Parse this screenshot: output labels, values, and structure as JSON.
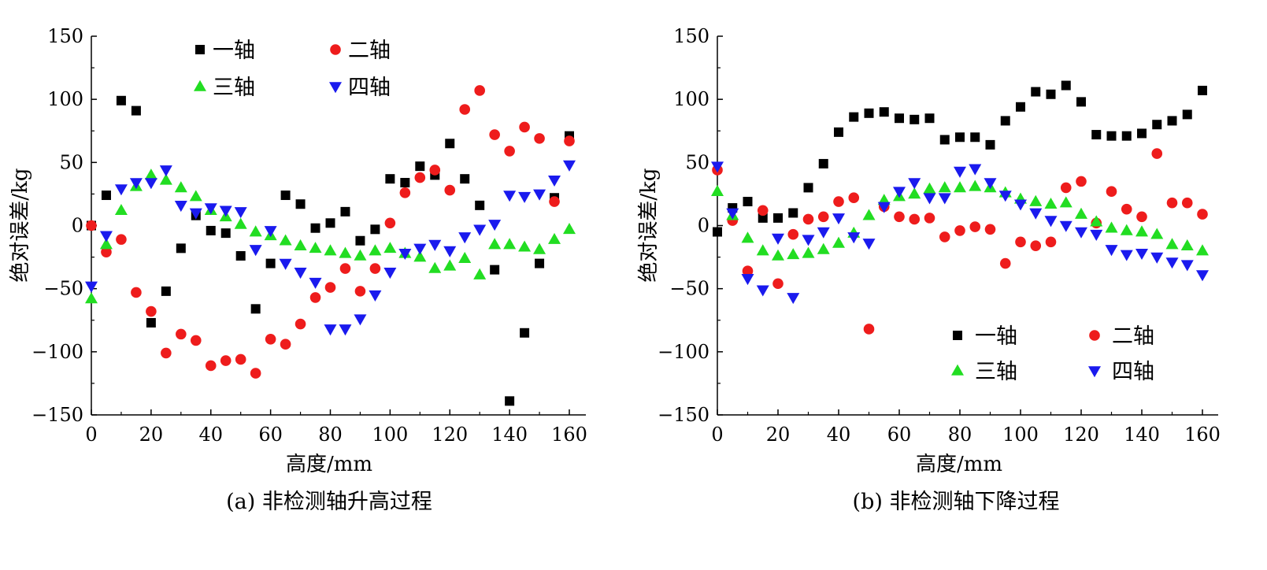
{
  "chart_data": [
    {
      "id": "a",
      "type": "scatter",
      "caption": "(a) 非检测轴升高过程",
      "xlabel": "高度/mm",
      "ylabel": "绝对误差/kg",
      "xlim": [
        0,
        165
      ],
      "ylim": [
        -150,
        150
      ],
      "xticks": [
        0,
        20,
        40,
        60,
        80,
        100,
        120,
        140,
        160
      ],
      "yticks": [
        -150,
        -100,
        -50,
        0,
        50,
        100,
        150
      ],
      "ytick_labels": [
        "−150",
        "−100",
        "−50",
        "0",
        "50",
        "100",
        "150"
      ],
      "legend_position": "top",
      "series": [
        {
          "name": "一轴",
          "marker": "square",
          "color": "#000000",
          "points": [
            [
              0,
              0
            ],
            [
              5,
              24
            ],
            [
              10,
              99
            ],
            [
              15,
              91
            ],
            [
              20,
              -77
            ],
            [
              25,
              -52
            ],
            [
              30,
              -18
            ],
            [
              35,
              8
            ],
            [
              40,
              -4
            ],
            [
              45,
              -6
            ],
            [
              50,
              -24
            ],
            [
              55,
              -66
            ],
            [
              60,
              -30
            ],
            [
              65,
              24
            ],
            [
              70,
              17
            ],
            [
              75,
              -2
            ],
            [
              80,
              2
            ],
            [
              85,
              11
            ],
            [
              90,
              -12
            ],
            [
              95,
              -3
            ],
            [
              100,
              37
            ],
            [
              105,
              34
            ],
            [
              110,
              47
            ],
            [
              115,
              40
            ],
            [
              120,
              65
            ],
            [
              125,
              37
            ],
            [
              130,
              16
            ],
            [
              135,
              -35
            ],
            [
              140,
              -139
            ],
            [
              145,
              -85
            ],
            [
              150,
              -30
            ],
            [
              155,
              22
            ],
            [
              160,
              71
            ]
          ]
        },
        {
          "name": "二轴",
          "marker": "circle",
          "color": "#ee1c1c",
          "points": [
            [
              0,
              0
            ],
            [
              5,
              -21
            ],
            [
              10,
              -11
            ],
            [
              15,
              -53
            ],
            [
              20,
              -68
            ],
            [
              25,
              -101
            ],
            [
              30,
              -86
            ],
            [
              35,
              -91
            ],
            [
              40,
              -111
            ],
            [
              45,
              -107
            ],
            [
              50,
              -106
            ],
            [
              55,
              -117
            ],
            [
              60,
              -90
            ],
            [
              65,
              -94
            ],
            [
              70,
              -78
            ],
            [
              75,
              -57
            ],
            [
              80,
              -49
            ],
            [
              85,
              -34
            ],
            [
              90,
              -52
            ],
            [
              95,
              -34
            ],
            [
              100,
              2
            ],
            [
              105,
              26
            ],
            [
              110,
              38
            ],
            [
              115,
              44
            ],
            [
              120,
              28
            ],
            [
              125,
              92
            ],
            [
              130,
              107
            ],
            [
              135,
              72
            ],
            [
              140,
              59
            ],
            [
              145,
              78
            ],
            [
              150,
              69
            ],
            [
              155,
              19
            ],
            [
              160,
              67
            ]
          ]
        },
        {
          "name": "三轴",
          "marker": "triangle-up",
          "color": "#22dd22",
          "points": [
            [
              0,
              -58
            ],
            [
              5,
              -15
            ],
            [
              10,
              12
            ],
            [
              15,
              31
            ],
            [
              20,
              40
            ],
            [
              25,
              36
            ],
            [
              30,
              30
            ],
            [
              35,
              23
            ],
            [
              40,
              12
            ],
            [
              45,
              7
            ],
            [
              50,
              1
            ],
            [
              55,
              -5
            ],
            [
              60,
              -8
            ],
            [
              65,
              -12
            ],
            [
              70,
              -16
            ],
            [
              75,
              -18
            ],
            [
              80,
              -20
            ],
            [
              85,
              -22
            ],
            [
              90,
              -24
            ],
            [
              95,
              -20
            ],
            [
              100,
              -18
            ],
            [
              105,
              -22
            ],
            [
              110,
              -25
            ],
            [
              115,
              -34
            ],
            [
              120,
              -32
            ],
            [
              125,
              -26
            ],
            [
              130,
              -39
            ],
            [
              135,
              -15
            ],
            [
              140,
              -15
            ],
            [
              145,
              -17
            ],
            [
              150,
              -19
            ],
            [
              155,
              -11
            ],
            [
              160,
              -3
            ]
          ]
        },
        {
          "name": "四轴",
          "marker": "triangle-down",
          "color": "#1a1aee",
          "points": [
            [
              0,
              -48
            ],
            [
              5,
              -8
            ],
            [
              10,
              29
            ],
            [
              15,
              34
            ],
            [
              20,
              34
            ],
            [
              25,
              44
            ],
            [
              30,
              16
            ],
            [
              35,
              10
            ],
            [
              40,
              14
            ],
            [
              45,
              12
            ],
            [
              50,
              11
            ],
            [
              55,
              -19
            ],
            [
              60,
              -4
            ],
            [
              65,
              -30
            ],
            [
              70,
              -37
            ],
            [
              75,
              -45
            ],
            [
              80,
              -82
            ],
            [
              85,
              -82
            ],
            [
              90,
              -74
            ],
            [
              95,
              -55
            ],
            [
              100,
              -37
            ],
            [
              105,
              -22
            ],
            [
              110,
              -18
            ],
            [
              115,
              -15
            ],
            [
              120,
              -20
            ],
            [
              125,
              -9
            ],
            [
              130,
              -3
            ],
            [
              135,
              1
            ],
            [
              140,
              24
            ],
            [
              145,
              23
            ],
            [
              150,
              25
            ],
            [
              155,
              36
            ],
            [
              160,
              48
            ]
          ]
        }
      ]
    },
    {
      "id": "b",
      "type": "scatter",
      "caption": "(b) 非检测轴下降过程",
      "xlabel": "高度/mm",
      "ylabel": "绝对误差/kg",
      "xlim": [
        0,
        165
      ],
      "ylim": [
        -150,
        150
      ],
      "xticks": [
        0,
        20,
        40,
        60,
        80,
        100,
        120,
        140,
        160
      ],
      "yticks": [
        -150,
        -100,
        -50,
        0,
        50,
        100,
        150
      ],
      "ytick_labels": [
        "−150",
        "−100",
        "−50",
        "0",
        "50",
        "100",
        "150"
      ],
      "legend_position": "bottom-right",
      "series": [
        {
          "name": "一轴",
          "marker": "square",
          "color": "#000000",
          "points": [
            [
              0,
              -5
            ],
            [
              5,
              14
            ],
            [
              10,
              19
            ],
            [
              15,
              6
            ],
            [
              20,
              6
            ],
            [
              25,
              10
            ],
            [
              30,
              30
            ],
            [
              35,
              49
            ],
            [
              40,
              74
            ],
            [
              45,
              86
            ],
            [
              50,
              89
            ],
            [
              55,
              90
            ],
            [
              60,
              85
            ],
            [
              65,
              84
            ],
            [
              70,
              85
            ],
            [
              75,
              68
            ],
            [
              80,
              70
            ],
            [
              85,
              70
            ],
            [
              90,
              64
            ],
            [
              95,
              83
            ],
            [
              100,
              94
            ],
            [
              105,
              106
            ],
            [
              110,
              104
            ],
            [
              115,
              111
            ],
            [
              120,
              98
            ],
            [
              125,
              72
            ],
            [
              130,
              71
            ],
            [
              135,
              71
            ],
            [
              140,
              73
            ],
            [
              145,
              80
            ],
            [
              150,
              83
            ],
            [
              155,
              88
            ],
            [
              160,
              107
            ]
          ]
        },
        {
          "name": "二轴",
          "marker": "circle",
          "color": "#ee1c1c",
          "points": [
            [
              0,
              44
            ],
            [
              5,
              4
            ],
            [
              10,
              -36
            ],
            [
              15,
              12
            ],
            [
              20,
              -46
            ],
            [
              25,
              -7
            ],
            [
              30,
              5
            ],
            [
              35,
              7
            ],
            [
              40,
              19
            ],
            [
              45,
              22
            ],
            [
              50,
              -82
            ],
            [
              55,
              15
            ],
            [
              60,
              7
            ],
            [
              65,
              5
            ],
            [
              70,
              6
            ],
            [
              75,
              -9
            ],
            [
              80,
              -4
            ],
            [
              85,
              -1
            ],
            [
              90,
              -3
            ],
            [
              95,
              -30
            ],
            [
              100,
              -13
            ],
            [
              105,
              -16
            ],
            [
              110,
              -13
            ],
            [
              115,
              30
            ],
            [
              120,
              35
            ],
            [
              125,
              2
            ],
            [
              130,
              27
            ],
            [
              135,
              13
            ],
            [
              140,
              7
            ],
            [
              145,
              57
            ],
            [
              150,
              18
            ],
            [
              155,
              18
            ],
            [
              160,
              9
            ]
          ]
        },
        {
          "name": "三轴",
          "marker": "triangle-up",
          "color": "#22dd22",
          "points": [
            [
              0,
              27
            ],
            [
              5,
              8
            ],
            [
              10,
              -10
            ],
            [
              15,
              -20
            ],
            [
              20,
              -24
            ],
            [
              25,
              -23
            ],
            [
              30,
              -22
            ],
            [
              35,
              -19
            ],
            [
              40,
              -14
            ],
            [
              45,
              -6
            ],
            [
              50,
              8
            ],
            [
              55,
              20
            ],
            [
              60,
              23
            ],
            [
              65,
              25
            ],
            [
              70,
              29
            ],
            [
              75,
              30
            ],
            [
              80,
              30
            ],
            [
              85,
              31
            ],
            [
              90,
              30
            ],
            [
              95,
              26
            ],
            [
              100,
              21
            ],
            [
              105,
              19
            ],
            [
              110,
              17
            ],
            [
              115,
              18
            ],
            [
              120,
              9
            ],
            [
              125,
              3
            ],
            [
              130,
              -2
            ],
            [
              135,
              -4
            ],
            [
              140,
              -5
            ],
            [
              145,
              -7
            ],
            [
              150,
              -15
            ],
            [
              155,
              -16
            ],
            [
              160,
              -20
            ]
          ]
        },
        {
          "name": "四轴",
          "marker": "triangle-down",
          "color": "#1a1aee",
          "points": [
            [
              0,
              47
            ],
            [
              5,
              10
            ],
            [
              10,
              -42
            ],
            [
              15,
              -51
            ],
            [
              20,
              -10
            ],
            [
              25,
              -57
            ],
            [
              30,
              -11
            ],
            [
              35,
              -5
            ],
            [
              40,
              6
            ],
            [
              45,
              -9
            ],
            [
              50,
              -14
            ],
            [
              55,
              15
            ],
            [
              60,
              27
            ],
            [
              65,
              34
            ],
            [
              70,
              22
            ],
            [
              75,
              22
            ],
            [
              80,
              43
            ],
            [
              85,
              45
            ],
            [
              90,
              34
            ],
            [
              95,
              24
            ],
            [
              100,
              17
            ],
            [
              105,
              10
            ],
            [
              110,
              4
            ],
            [
              115,
              0
            ],
            [
              120,
              -5
            ],
            [
              125,
              -7
            ],
            [
              130,
              -19
            ],
            [
              135,
              -23
            ],
            [
              140,
              -22
            ],
            [
              145,
              -25
            ],
            [
              150,
              -29
            ],
            [
              155,
              -31
            ],
            [
              160,
              -39
            ]
          ]
        }
      ]
    }
  ]
}
